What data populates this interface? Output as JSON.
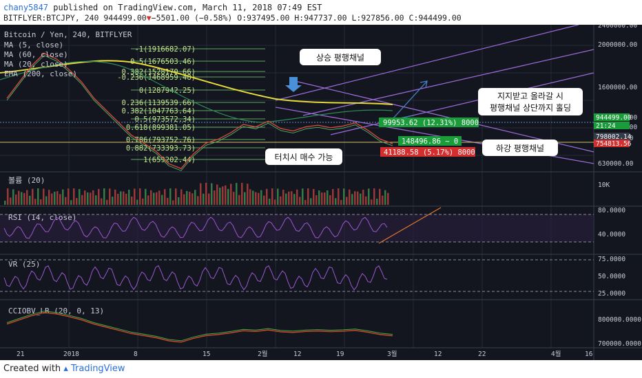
{
  "header": {
    "user": "chany5847",
    "published_text": " published on TradingView.com, March 11, 2018 07:49 EST",
    "symbol_line_prefix": "BITFLYER:BTCJPY, 240 944499.00",
    "change": "−5501.00 (−0.58%)",
    "ohlc": " O:937495.00 H:947737.00 L:927856.00 C:944499.00"
  },
  "footer": {
    "created_with": "Created with",
    "brand": "TradingView"
  },
  "chart_data": {
    "type": "line",
    "title": "Bitcoin / Yen, 240, BITFLYER",
    "legend": [
      "MA (5, close)",
      "MA (60, close)",
      "MA (20, close)",
      "EMA (200, close)"
    ],
    "y_ticks": [
      "2400000.00",
      "2000000.00",
      "1600000.00",
      "1200000.00",
      "1000000.00",
      "800000.00",
      "630000.00"
    ],
    "x_ticks": [
      "21",
      "2018",
      "8",
      "15",
      "2월",
      "12",
      "19",
      "3월",
      "12",
      "22",
      "4월",
      "16"
    ],
    "price_tags": [
      {
        "label": "944499.00",
        "color": "#1b9c3b"
      },
      {
        "label": "21:24",
        "color": "#1b9c3b"
      },
      {
        "label": "798002.14",
        "color": "#333a48"
      },
      {
        "label": "754813.56",
        "color": "#d32f2f"
      }
    ],
    "price_series": [
      1500000,
      1700000,
      1900000,
      2050000,
      1980000,
      1850000,
      1700000,
      1500000,
      1350000,
      1200000,
      1050000,
      950000,
      850000,
      700000,
      640000,
      820000,
      950000,
      1000000,
      1080000,
      1180000,
      1150000,
      1220000,
      1130000,
      1100000,
      1150000,
      1170000,
      1140000,
      1160000,
      1200000,
      1110000,
      1000000,
      944499
    ],
    "fib_levels": [
      {
        "label": "-1(1916682.07)"
      },
      {
        "label": "0.5(1676503.46)"
      },
      {
        "label": "0.382(1528170.66)"
      },
      {
        "label": "-0.236(1468959.48)"
      },
      {
        "label": "0(1287942.25)"
      },
      {
        "label": "0.236(1139539.66)"
      },
      {
        "label": "0.382(1047763.64)"
      },
      {
        "label": "0.5(973572.34)"
      },
      {
        "label": "0.618(899381.05)"
      },
      {
        "label": "0.786(793752.76)"
      },
      {
        "label": "0.882(733393.73)"
      },
      {
        "label": "1(659202.44)"
      }
    ],
    "annotations": {
      "up_channel": "상승 평행채널",
      "down_channel": "하강 평행채널",
      "support_line1": "지지받고 올라갈 시",
      "support_line2": "평행채널 상단까지 홀딩",
      "touch_buy": "터치시 매수 가능"
    },
    "measure_boxes": [
      {
        "label": "99953.62 (12.31%) 8000",
        "color": "#1b9c3b"
      },
      {
        "label": "148496.86 ~ 0",
        "color": "#1b9c3b"
      },
      {
        "label": "41188.58 (5.17%) 8000",
        "color": "#d32f2f"
      }
    ],
    "indicators": [
      {
        "name": "볼륨 (20)",
        "ticks": [
          "10K"
        ]
      },
      {
        "name": "RSI (14, close)",
        "ticks": [
          "80.0000",
          "40.0000"
        ]
      },
      {
        "name": "VR (25)",
        "ticks": [
          "75.0000",
          "50.0000",
          "25.0000"
        ]
      },
      {
        "name": "CCIOBV_LB (20, 0, 13)",
        "ticks": [
          "800000.0000",
          "700000.0000"
        ]
      }
    ]
  }
}
